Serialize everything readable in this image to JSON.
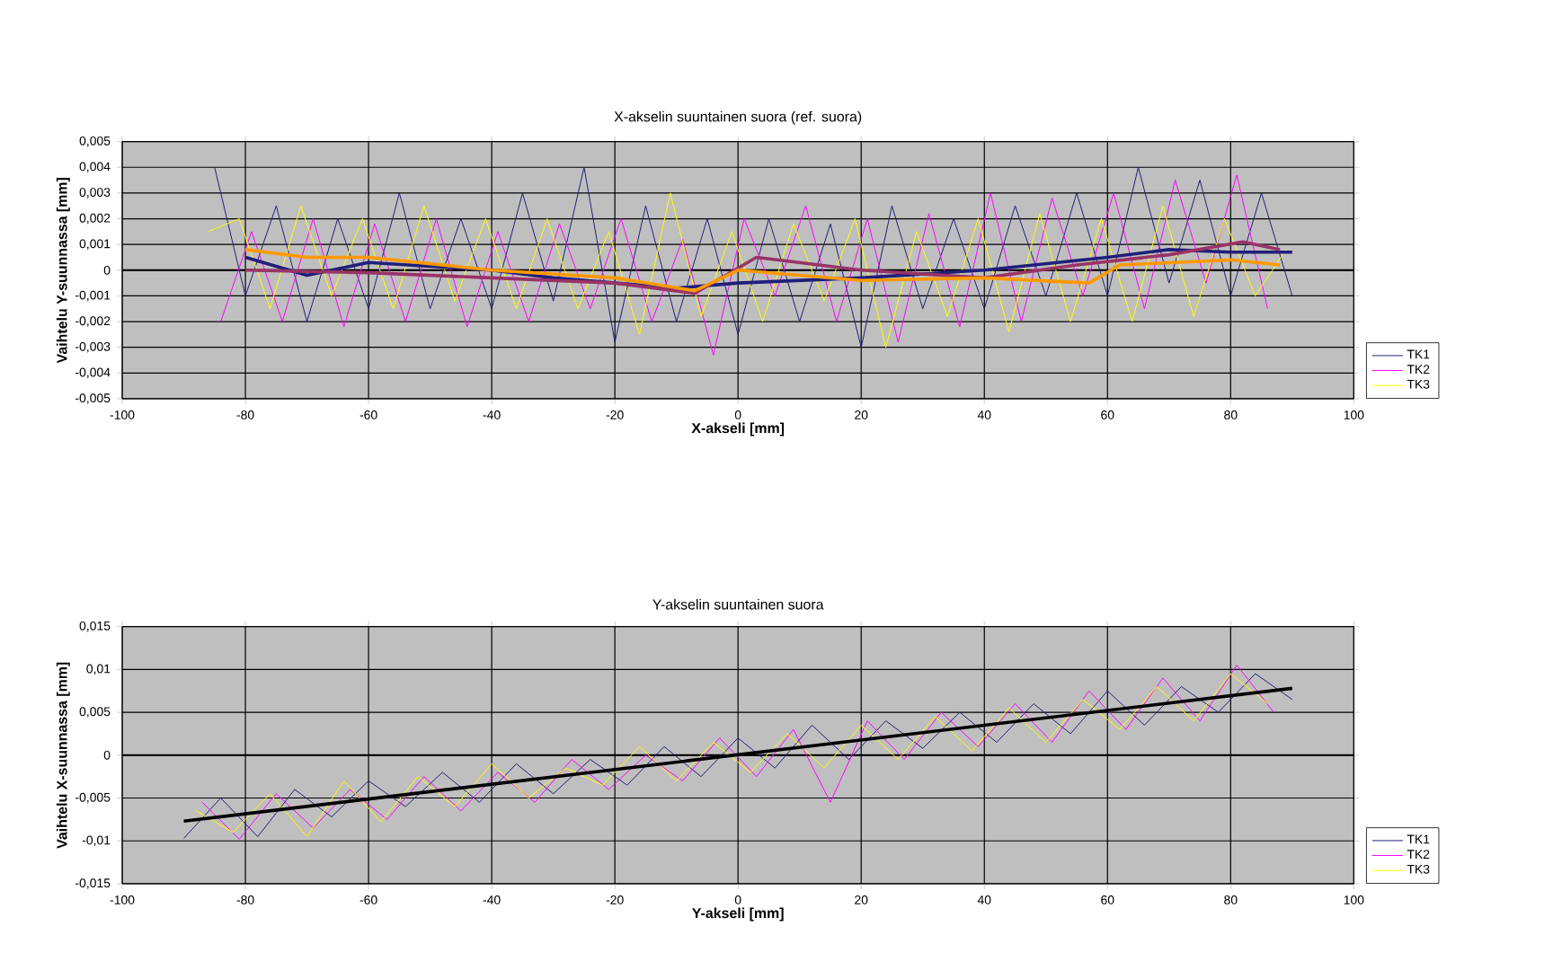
{
  "chart_data": [
    {
      "type": "line",
      "title": "X-akselin suuntainen suora (ref. suora)",
      "xlabel": "X-akseli [mm]",
      "ylabel": "Vaihtelu Y-suunnassa [mm]",
      "xlim": [
        -100,
        100
      ],
      "xticks": [
        -100,
        -80,
        -60,
        -40,
        -20,
        0,
        20,
        40,
        60,
        80,
        100
      ],
      "ylim": [
        -0.005,
        0.005
      ],
      "yticks": [
        {
          "value": -0.005,
          "label": "-0,005"
        },
        {
          "value": -0.004,
          "label": "-0,004"
        },
        {
          "value": -0.003,
          "label": "-0,003"
        },
        {
          "value": -0.002,
          "label": "-0,002"
        },
        {
          "value": -0.001,
          "label": "-0,001"
        },
        {
          "value": 0,
          "label": "0"
        },
        {
          "value": 0.001,
          "label": "0,001"
        },
        {
          "value": 0.002,
          "label": "0,002"
        },
        {
          "value": 0.003,
          "label": "0,003"
        },
        {
          "value": 0.004,
          "label": "0,004"
        },
        {
          "value": 0.005,
          "label": "0,005"
        }
      ],
      "grid": true,
      "legend": "bottom right",
      "marker": "none",
      "series": [
        {
          "name": "TK1",
          "color": "#1f1f7a",
          "x": [
            -85,
            -80,
            -75,
            -70,
            -65,
            -60,
            -55,
            -50,
            -45,
            -40,
            -35,
            -30,
            -25,
            -20,
            -15,
            -10,
            -5,
            0,
            5,
            10,
            15,
            20,
            25,
            30,
            35,
            40,
            45,
            50,
            55,
            60,
            65,
            70,
            75,
            80,
            85,
            90
          ],
          "values": [
            0.004,
            -0.001,
            0.0025,
            -0.002,
            0.002,
            -0.0015,
            0.003,
            -0.0015,
            0.002,
            -0.0015,
            0.003,
            -0.0012,
            0.004,
            -0.0028,
            0.0025,
            -0.002,
            0.002,
            -0.0025,
            0.002,
            -0.002,
            0.0018,
            -0.003,
            0.0025,
            -0.0015,
            0.002,
            -0.0015,
            0.0025,
            -0.001,
            0.003,
            -0.001,
            0.004,
            -0.0005,
            0.0035,
            -0.001,
            0.003,
            -0.001
          ]
        },
        {
          "name": "TK2",
          "color": "#ff00ff",
          "x": [
            -84,
            -79,
            -74,
            -69,
            -64,
            -59,
            -54,
            -49,
            -44,
            -39,
            -34,
            -29,
            -24,
            -19,
            -14,
            -9,
            -4,
            1,
            6,
            11,
            16,
            21,
            26,
            31,
            36,
            41,
            46,
            51,
            56,
            61,
            66,
            71,
            76,
            81,
            86
          ],
          "values": [
            -0.002,
            0.0015,
            -0.002,
            0.002,
            -0.0022,
            0.0018,
            -0.002,
            0.002,
            -0.0022,
            0.0015,
            -0.002,
            0.0018,
            -0.0015,
            0.002,
            -0.002,
            0.0012,
            -0.0033,
            0.002,
            -0.001,
            0.0025,
            -0.002,
            0.002,
            -0.0028,
            0.0022,
            -0.0022,
            0.003,
            -0.002,
            0.0028,
            -0.001,
            0.003,
            -0.0015,
            0.0035,
            -0.0005,
            0.0037,
            -0.0015
          ]
        },
        {
          "name": "TK3",
          "color": "#ffff00",
          "x": [
            -86,
            -81,
            -76,
            -71,
            -66,
            -61,
            -56,
            -51,
            -46,
            -41,
            -36,
            -31,
            -26,
            -21,
            -16,
            -11,
            -6,
            -1,
            4,
            9,
            14,
            19,
            24,
            29,
            34,
            39,
            44,
            49,
            54,
            59,
            64,
            69,
            74,
            79,
            84,
            89
          ],
          "values": [
            0.0015,
            0.002,
            -0.0015,
            0.0025,
            -0.001,
            0.002,
            -0.0015,
            0.0025,
            -0.0012,
            0.002,
            -0.0015,
            0.002,
            -0.0015,
            0.0015,
            -0.0025,
            0.003,
            -0.0018,
            0.0015,
            -0.002,
            0.0018,
            -0.0012,
            0.002,
            -0.003,
            0.0015,
            -0.0018,
            0.002,
            -0.0024,
            0.0022,
            -0.002,
            0.002,
            -0.002,
            0.0025,
            -0.0018,
            0.002,
            -0.001,
            0.0008
          ]
        },
        {
          "color": "#1f1f7a",
          "x": [
            -80,
            -70,
            -60,
            -40,
            -30,
            -10,
            0,
            20,
            40,
            60,
            70,
            80,
            90
          ],
          "values": [
            0.0005,
            -0.0002,
            0.0003,
            0,
            -0.0003,
            -0.0007,
            -0.0005,
            -0.0003,
            0,
            0.0005,
            0.0008,
            0.0007,
            0.0007
          ]
        },
        {
          "color": "#993366",
          "x": [
            -80,
            -60,
            -40,
            -20,
            -7,
            3,
            20,
            40,
            55,
            70,
            82,
            88
          ],
          "values": [
            0,
            -0.0001,
            -0.0003,
            -0.0005,
            -0.0009,
            0.0005,
            0,
            -0.0003,
            0.0002,
            0.0006,
            0.0011,
            0.0008
          ]
        },
        {
          "color": "#ff9900",
          "x": [
            -80,
            -70,
            -60,
            -40,
            -20,
            -7,
            0,
            20,
            40,
            57,
            62,
            80,
            88
          ],
          "values": [
            0.0008,
            0.0005,
            0.0005,
            0,
            -0.0003,
            -0.0008,
            0,
            -0.0004,
            -0.0003,
            -0.0005,
            0.0002,
            0.0004,
            0.0002
          ]
        }
      ]
    },
    {
      "type": "line",
      "title": "Y-akselin suuntainen suora",
      "xlabel": "Y-akseli [mm]",
      "ylabel": "Vaihtelu X-suunnassa [mm]",
      "xlim": [
        -100,
        100
      ],
      "xticks": [
        -100,
        -80,
        -60,
        -40,
        -20,
        0,
        20,
        40,
        60,
        80,
        100
      ],
      "ylim": [
        -0.015,
        0.015
      ],
      "yticks": [
        {
          "value": -0.015,
          "label": "-0,015"
        },
        {
          "value": -0.01,
          "label": "-0,01"
        },
        {
          "value": -0.005,
          "label": "-0,005"
        },
        {
          "value": 0,
          "label": "0"
        },
        {
          "value": 0.005,
          "label": "0,005"
        },
        {
          "value": 0.01,
          "label": "0,01"
        },
        {
          "value": 0.015,
          "label": "0,015"
        }
      ],
      "grid": true,
      "legend": "bottom right",
      "marker": "none",
      "series": [
        {
          "name": "TK1",
          "color": "#1f1f7a",
          "x": [
            -90,
            -84,
            -78,
            -72,
            -66,
            -60,
            -54,
            -48,
            -42,
            -36,
            -30,
            -24,
            -18,
            -12,
            -6,
            0,
            6,
            12,
            18,
            24,
            30,
            36,
            42,
            48,
            54,
            60,
            66,
            72,
            78,
            84,
            90
          ],
          "values": [
            -0.0097,
            -0.005,
            -0.0095,
            -0.004,
            -0.0072,
            -0.003,
            -0.006,
            -0.002,
            -0.0055,
            -0.001,
            -0.0045,
            -0.0005,
            -0.0035,
            0.001,
            -0.0025,
            0.002,
            -0.0015,
            0.0035,
            -0.0005,
            0.004,
            0.0008,
            0.005,
            0.0015,
            0.006,
            0.0025,
            0.0075,
            0.0035,
            0.008,
            0.005,
            0.0095,
            0.0065
          ]
        },
        {
          "name": "TK2",
          "color": "#ff00ff",
          "x": [
            -87,
            -81,
            -75,
            -69,
            -63,
            -57,
            -51,
            -45,
            -39,
            -33,
            -27,
            -21,
            -15,
            -9,
            -3,
            3,
            9,
            15,
            21,
            27,
            33,
            39,
            45,
            51,
            57,
            63,
            69,
            75,
            81,
            87
          ],
          "values": [
            -0.0055,
            -0.0098,
            -0.0045,
            -0.0085,
            -0.004,
            -0.0075,
            -0.0025,
            -0.0065,
            -0.002,
            -0.0055,
            -0.0005,
            -0.004,
            0,
            -0.003,
            0.002,
            -0.0025,
            0.003,
            -0.0055,
            0.004,
            -0.0005,
            0.005,
            0.001,
            0.006,
            0.0015,
            0.0075,
            0.003,
            0.009,
            0.004,
            0.0105,
            0.005
          ]
        },
        {
          "name": "TK3",
          "color": "#ffff00",
          "x": [
            -88,
            -82,
            -76,
            -70,
            -64,
            -58,
            -52,
            -46,
            -40,
            -34,
            -28,
            -22,
            -16,
            -10,
            -4,
            2,
            8,
            14,
            20,
            26,
            32,
            38,
            44,
            50,
            56,
            62,
            68,
            74,
            80,
            86
          ],
          "values": [
            -0.0065,
            -0.009,
            -0.0045,
            -0.0095,
            -0.003,
            -0.0078,
            -0.0025,
            -0.006,
            -0.001,
            -0.005,
            -0.0015,
            -0.0035,
            0.001,
            -0.003,
            0.0015,
            -0.002,
            0.0025,
            -0.0015,
            0.0035,
            -0.0005,
            0.0045,
            0.0005,
            0.0055,
            0.0015,
            0.0065,
            0.003,
            0.008,
            0.004,
            0.0095,
            0.006
          ]
        },
        {
          "color": "#000000",
          "x": [
            -90,
            90
          ],
          "values": [
            -0.0077,
            0.0078
          ]
        }
      ]
    }
  ]
}
